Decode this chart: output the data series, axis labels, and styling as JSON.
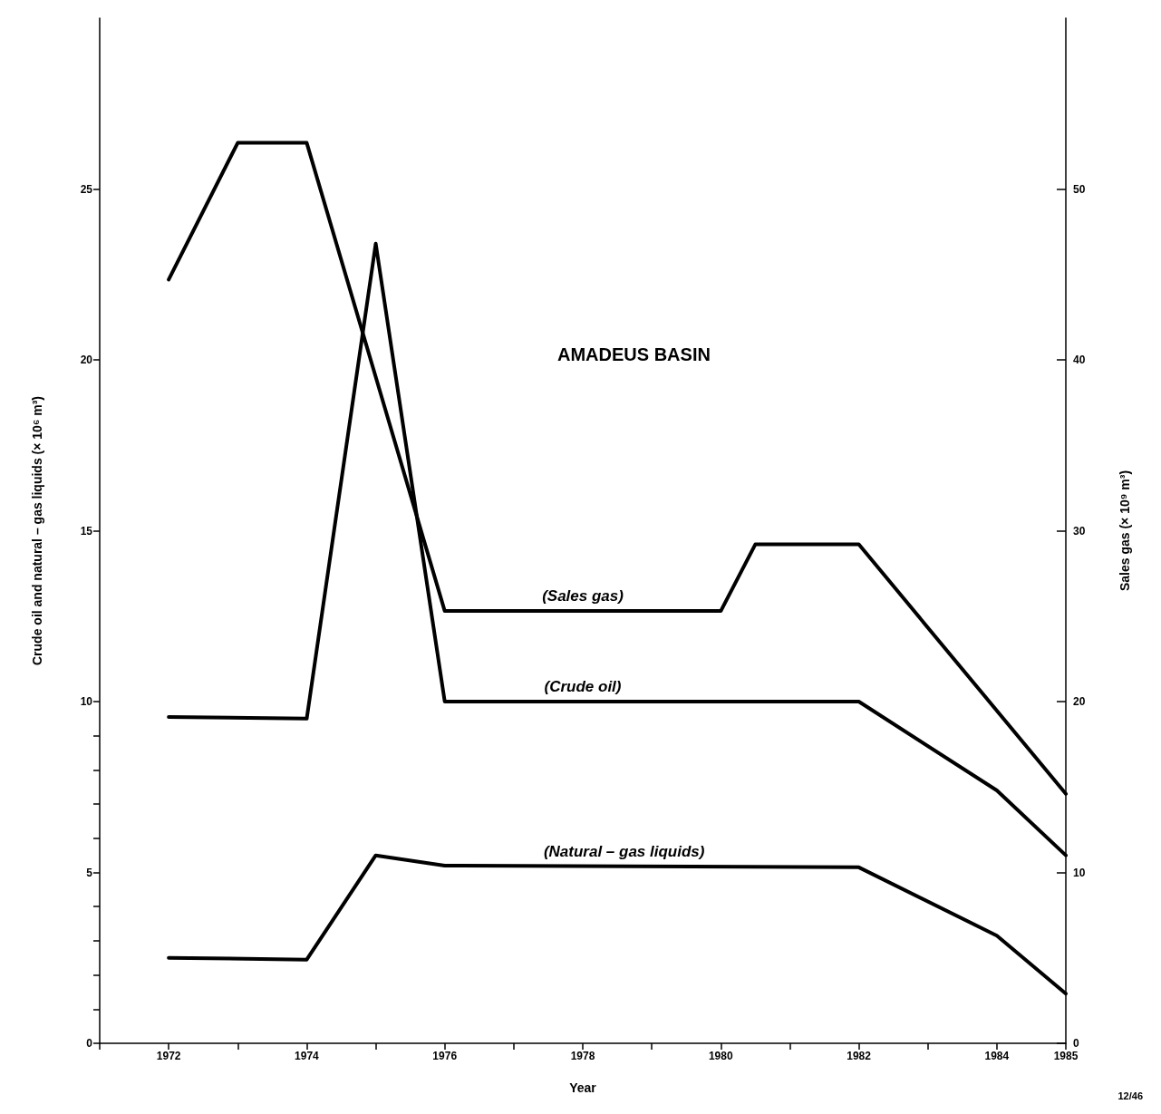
{
  "chart_data": {
    "type": "line",
    "title": "AMADEUS BASIN",
    "xlabel": "Year",
    "ylabel": "Crude oil and natural – gas liquids (× 10⁶ m³)",
    "y2label": "Sales gas (× 10⁹ m³)",
    "series": [
      {
        "name": "(Sales gas)",
        "color": "#000000",
        "axis": "y2",
        "x": [
          1972,
          1973,
          1974,
          1976,
          1980,
          1980.5,
          1982,
          1985
        ],
        "values": [
          44.7,
          52.7,
          52.7,
          25.3,
          25.3,
          29.2,
          29.2,
          14.6
        ]
      },
      {
        "name": "(Crude oil)",
        "color": "#000000",
        "x": [
          1972,
          1974,
          1975,
          1976,
          1982,
          1984,
          1985
        ],
        "values": [
          9.55,
          9.5,
          23.4,
          10.0,
          10.0,
          7.4,
          5.5
        ]
      },
      {
        "name": "(Natural – gas liquids)",
        "color": "#000000",
        "x": [
          1972,
          1974,
          1975,
          1976,
          1982,
          1984,
          1985
        ],
        "values": [
          2.5,
          2.45,
          5.5,
          5.2,
          5.15,
          3.15,
          1.45
        ]
      }
    ],
    "xlim": [
      1971,
      1985
    ],
    "xticks": [
      {
        "value": 1971,
        "label": null
      },
      1972,
      {
        "value": 1973,
        "label": null
      },
      1974,
      {
        "value": 1975,
        "label": null
      },
      1976,
      {
        "value": 1977,
        "label": null
      },
      1978,
      {
        "value": 1979,
        "label": null
      },
      1980,
      {
        "value": 1981,
        "label": null
      },
      1982,
      {
        "value": 1983,
        "label": null
      },
      1984,
      1985
    ],
    "ylim": [
      0,
      30
    ],
    "yticks": [
      0,
      {
        "value": 1,
        "label": null
      },
      {
        "value": 2,
        "label": null
      },
      {
        "value": 3,
        "label": null
      },
      {
        "value": 4,
        "label": null
      },
      5,
      {
        "value": 6,
        "label": null
      },
      {
        "value": 7,
        "label": null
      },
      {
        "value": 8,
        "label": null
      },
      {
        "value": 9,
        "label": null
      },
      10,
      15,
      20,
      25
    ],
    "y2lim": [
      0,
      60
    ],
    "y2ticks": [
      0,
      10,
      20,
      30,
      40,
      50
    ],
    "annotations": [
      "12/46"
    ],
    "grid": false,
    "legend": false,
    "marker": "none",
    "line_style": "solid"
  }
}
